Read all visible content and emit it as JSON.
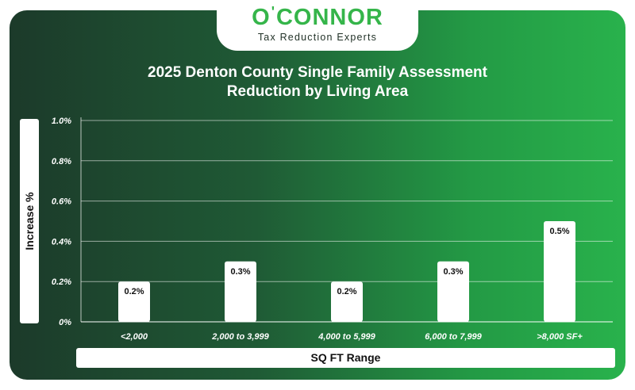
{
  "logo": {
    "word_left": "O",
    "apostrophe": "'",
    "word_right": "CONNOR",
    "tagline": "Tax Reduction Experts"
  },
  "chart_data": {
    "type": "bar",
    "title_line1": "2025 Denton County Single Family Assessment",
    "title_line2": "Reduction by Living Area",
    "xlabel": "SQ FT Range",
    "ylabel": "Increase %",
    "categories": [
      "<2,000",
      "2,000 to 3,999",
      "4,000 to 5,999",
      "6,000 to 7,999",
      ">8,000 SF+"
    ],
    "values": [
      0.2,
      0.3,
      0.2,
      0.3,
      0.5
    ],
    "value_labels": [
      "0.2%",
      "0.3%",
      "0.2%",
      "0.3%",
      "0.5%"
    ],
    "ylim": [
      0,
      1.0
    ],
    "yticks": [
      "0%",
      "0.2%",
      "0.4%",
      "0.6%",
      "0.8%",
      "1.0%"
    ],
    "grid": true,
    "colors": {
      "bar": "#ffffff",
      "gradient_start": "#1c3a2a",
      "gradient_end": "#29b24c",
      "brand": "#35b54a"
    }
  }
}
